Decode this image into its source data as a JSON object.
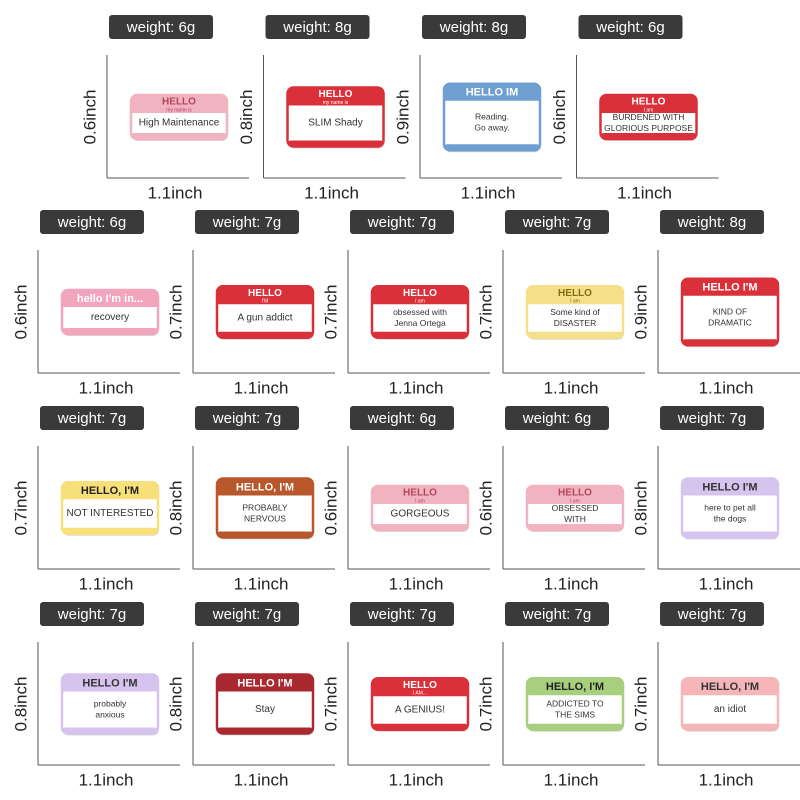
{
  "items": [
    {
      "weight": "weight: 6g",
      "height": "0.6inch",
      "width": "1.1inch",
      "header": "HELLO",
      "sub": "my name is",
      "body": [
        "High Maintenance"
      ],
      "color": "#f2b3c0",
      "text_color": "#b0455e"
    },
    {
      "weight": "weight: 8g",
      "height": "0.8inch",
      "width": "1.1inch",
      "header": "HELLO",
      "sub": "my name is",
      "body": [
        "SLIM Shady"
      ],
      "color": "#d9303a",
      "text_color": "#ffffff"
    },
    {
      "weight": "weight: 8g",
      "height": "0.9inch",
      "width": "1.1inch",
      "header": "HELLO IM",
      "body": [
        "Reading.",
        "Go away."
      ],
      "color": "#6f9fd0",
      "text_color": "#ffffff"
    },
    {
      "weight": "weight: 6g",
      "height": "0.6inch",
      "width": "1.1inch",
      "header": "HELLO",
      "sub": "I am",
      "body": [
        "BURDENED WITH",
        "GLORIOUS PURPOSE"
      ],
      "color": "#d9303a",
      "text_color": "#ffffff"
    },
    {
      "weight": "weight: 6g",
      "height": "0.6inch",
      "width": "1.1inch",
      "header": "hello I'm in...",
      "body": [
        "recovery"
      ],
      "color": "#f2a5bd",
      "text_color": "#ffffff"
    },
    {
      "weight": "weight: 7g",
      "height": "0.7inch",
      "width": "1.1inch",
      "header": "HELLO",
      "sub": "I'M",
      "body": [
        "A gun addict"
      ],
      "color": "#d9303a",
      "text_color": "#ffffff"
    },
    {
      "weight": "weight: 7g",
      "height": "0.7inch",
      "width": "1.1inch",
      "header": "HELLO",
      "sub": "I am",
      "body": [
        "obsessed with",
        "Jenna Ortega"
      ],
      "color": "#d9303a",
      "text_color": "#ffffff"
    },
    {
      "weight": "weight: 7g",
      "height": "0.7inch",
      "width": "1.1inch",
      "header": "HELLO",
      "sub": "I am",
      "body": [
        "Some kind of",
        "DISASTER"
      ],
      "color": "#f5e08a",
      "text_color": "#8a6a10"
    },
    {
      "weight": "weight: 8g",
      "height": "0.9inch",
      "width": "1.1inch",
      "header": "HELLO I'M",
      "body": [
        "KIND OF",
        "DRAMATIC"
      ],
      "color": "#d9303a",
      "text_color": "#ffffff"
    },
    {
      "weight": "weight: 7g",
      "height": "0.7inch",
      "width": "1.1inch",
      "header": "HELLO, I'M",
      "body": [
        "NOT INTERESTED"
      ],
      "color": "#f7df7a",
      "text_color": "#222222"
    },
    {
      "weight": "weight: 7g",
      "height": "0.8inch",
      "width": "1.1inch",
      "header": "HELLO, I'M",
      "body": [
        "PROBABLY",
        "NERVOUS"
      ],
      "color": "#b8562c",
      "text_color": "#ffffff"
    },
    {
      "weight": "weight: 6g",
      "height": "0.6inch",
      "width": "1.1inch",
      "header": "HELLO",
      "sub": "I am",
      "body": [
        "GORGEOUS"
      ],
      "color": "#f2b3c0",
      "text_color": "#b0455e"
    },
    {
      "weight": "weight: 6g",
      "height": "0.6inch",
      "width": "1.1inch",
      "header": "HELLO",
      "sub": "I am",
      "body": [
        "OBSESSED",
        "WITH"
      ],
      "color": "#f2b3c0",
      "text_color": "#b0455e"
    },
    {
      "weight": "weight: 7g",
      "height": "0.8inch",
      "width": "1.1inch",
      "header": "HELLO I'M",
      "body": [
        "here to pet all",
        "the dogs"
      ],
      "color": "#d6c3ee",
      "text_color": "#333333"
    },
    {
      "weight": "weight: 7g",
      "height": "0.8inch",
      "width": "1.1inch",
      "header": "HELLO I'M",
      "body": [
        "probably",
        "anxious"
      ],
      "color": "#d6c3ee",
      "text_color": "#333333"
    },
    {
      "weight": "weight: 7g",
      "height": "0.8inch",
      "width": "1.1inch",
      "header": "HELLO I'M",
      "body": [
        "Stay"
      ],
      "color": "#a82a30",
      "text_color": "#ffffff"
    },
    {
      "weight": "weight: 7g",
      "height": "0.7inch",
      "width": "1.1inch",
      "header": "HELLO",
      "sub": "I AM...",
      "body": [
        "A GENIUS!"
      ],
      "color": "#d9303a",
      "text_color": "#ffffff"
    },
    {
      "weight": "weight: 7g",
      "height": "0.7inch",
      "width": "1.1inch",
      "header": "HELLO, I'M",
      "body": [
        "ADDICTED TO",
        "THE SIMS"
      ],
      "color": "#a8cf7e",
      "text_color": "#222222"
    },
    {
      "weight": "weight: 7g",
      "height": "0.7inch",
      "width": "1.1inch",
      "header": "HELLO, I'M",
      "body": [
        "an idiot"
      ],
      "color": "#f4b6b8",
      "text_color": "#333333"
    }
  ]
}
